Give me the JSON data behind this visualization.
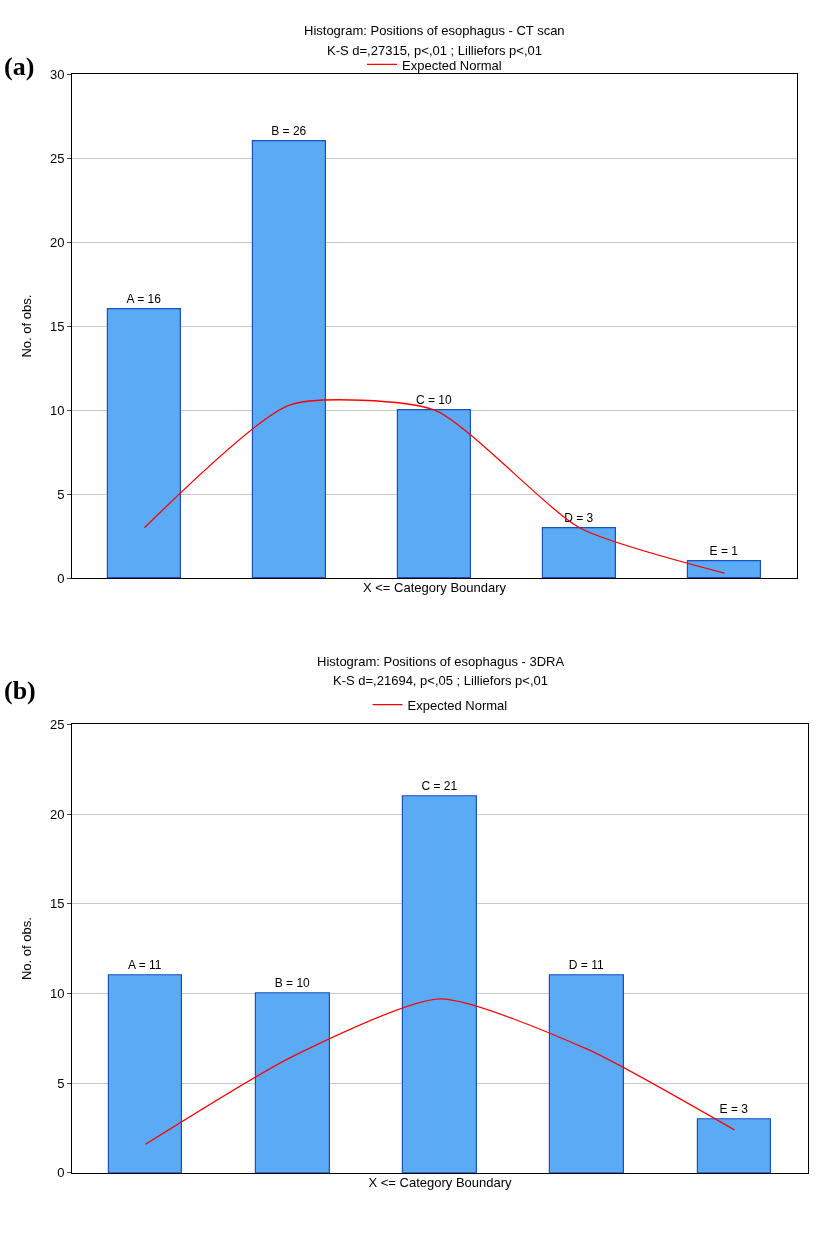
{
  "chart_data": [
    {
      "type": "bar",
      "title": "Histogram: Positions of esophagus - CT scan",
      "subtitle": "K-S d=,27315, p<,01 ; Lilliefors p<,01",
      "annotations": [
        "(a)"
      ],
      "xlabel": "X <= Category Boundary",
      "ylabel": "No. of obs.",
      "categories": [
        null,
        null,
        null,
        null,
        null
      ],
      "ylim": [
        0,
        30
      ],
      "yticks": [
        0,
        5,
        10,
        15,
        20,
        25,
        30
      ],
      "grid": "y",
      "legend": "top",
      "tick_labels": "y",
      "series": [
        {
          "color": "#5aaaf5",
          "values": [
            16,
            26,
            10,
            3,
            1
          ],
          "value_labels": [
            "A = 16",
            "B = 26",
            "C = 10",
            "D = 3",
            "E = 1"
          ]
        },
        {
          "type": "line",
          "name": "Expected Normal",
          "color": "#ff0000",
          "values": [
            3,
            10.3,
            10,
            3,
            0.3
          ]
        }
      ]
    },
    {
      "type": "bar",
      "title": "Histogram: Positions of esophagus - 3DRA",
      "subtitle": "K-S d=,21694, p<,05 ; Lilliefors p<,01",
      "annotations": [
        "(b)"
      ],
      "xlabel": "X <= Category Boundary",
      "ylabel": "No. of obs.",
      "categories": [
        null,
        null,
        null,
        null,
        null
      ],
      "ylim": [
        0,
        25
      ],
      "yticks": [
        0,
        5,
        10,
        15,
        20,
        25
      ],
      "grid": "y",
      "legend": "top",
      "tick_labels": "y",
      "series": [
        {
          "color": "#5aaaf5",
          "values": [
            11,
            10,
            21,
            11,
            3
          ],
          "value_labels": [
            "A = 11",
            "B = 10",
            "C = 21",
            "D = 11",
            "E = 3"
          ]
        },
        {
          "type": "line",
          "name": "Expected Normal",
          "color": "#ff0000",
          "values": [
            1.6,
            6.5,
            9.7,
            6.9,
            2.4
          ]
        }
      ]
    }
  ]
}
